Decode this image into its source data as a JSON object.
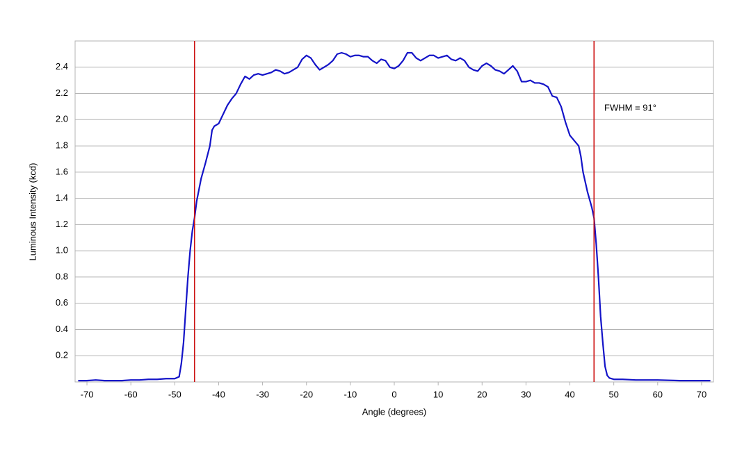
{
  "chart_data": {
    "type": "line",
    "x_label": "Angle (degrees)",
    "y_label": "Luminous Intensity (kcd)",
    "annotation": "FWHM = 91°",
    "color": "#1414c8",
    "x": [
      -72,
      -70,
      -68,
      -66,
      -64,
      -62,
      -60,
      -58,
      -56,
      -54,
      -52,
      -50,
      -49,
      -48.5,
      -48,
      -47.5,
      -47,
      -46.5,
      -46,
      -45.5,
      -45,
      -44,
      -43,
      -42,
      -41.5,
      -41,
      -40,
      -39,
      -38,
      -37,
      -36,
      -35,
      -34,
      -33,
      -32,
      -31,
      -30,
      -29,
      -28,
      -27,
      -26,
      -25,
      -24,
      -23,
      -22,
      -21,
      -20,
      -19,
      -18,
      -17,
      -16,
      -15,
      -14,
      -13,
      -12,
      -11,
      -10,
      -9,
      -8,
      -7,
      -6,
      -5,
      -4,
      -3,
      -2,
      -1,
      0,
      1,
      2,
      3,
      4,
      5,
      6,
      7,
      8,
      9,
      10,
      11,
      12,
      13,
      14,
      15,
      16,
      17,
      18,
      19,
      20,
      21,
      22,
      23,
      24,
      25,
      26,
      27,
      28,
      29,
      30,
      31,
      32,
      33,
      34,
      35,
      36,
      37,
      38,
      39,
      40,
      41,
      42,
      42.5,
      43,
      44,
      45,
      45.5,
      46,
      46.5,
      47,
      47.5,
      48,
      48.5,
      49,
      50,
      52,
      55,
      60,
      65,
      70,
      72
    ],
    "values": [
      0.01,
      0.01,
      0.015,
      0.01,
      0.01,
      0.01,
      0.015,
      0.015,
      0.02,
      0.02,
      0.025,
      0.025,
      0.04,
      0.14,
      0.3,
      0.55,
      0.8,
      1.0,
      1.15,
      1.25,
      1.38,
      1.55,
      1.67,
      1.8,
      1.92,
      1.95,
      1.97,
      2.04,
      2.11,
      2.16,
      2.2,
      2.27,
      2.33,
      2.31,
      2.34,
      2.35,
      2.34,
      2.35,
      2.36,
      2.38,
      2.37,
      2.35,
      2.36,
      2.38,
      2.4,
      2.46,
      2.49,
      2.47,
      2.42,
      2.38,
      2.4,
      2.42,
      2.45,
      2.5,
      2.51,
      2.5,
      2.48,
      2.49,
      2.49,
      2.48,
      2.48,
      2.45,
      2.43,
      2.46,
      2.45,
      2.4,
      2.39,
      2.41,
      2.45,
      2.51,
      2.51,
      2.47,
      2.45,
      2.47,
      2.49,
      2.49,
      2.47,
      2.48,
      2.49,
      2.46,
      2.45,
      2.47,
      2.45,
      2.4,
      2.38,
      2.37,
      2.41,
      2.43,
      2.41,
      2.38,
      2.37,
      2.35,
      2.38,
      2.41,
      2.37,
      2.29,
      2.29,
      2.3,
      2.28,
      2.28,
      2.27,
      2.25,
      2.18,
      2.17,
      2.1,
      1.98,
      1.88,
      1.84,
      1.8,
      1.72,
      1.6,
      1.45,
      1.33,
      1.25,
      1.05,
      0.8,
      0.5,
      0.3,
      0.12,
      0.05,
      0.03,
      0.02,
      0.02,
      0.015,
      0.015,
      0.01,
      0.01,
      0.01
    ],
    "markers": {
      "x": [
        -45.5,
        45.5
      ],
      "color": "#cc1111"
    },
    "xlim": [
      -72.7,
      72.7
    ],
    "ylim": [
      0,
      2.6
    ],
    "xticks": [
      -70,
      -60,
      -50,
      -40,
      -30,
      -20,
      -10,
      0,
      10,
      20,
      30,
      40,
      50,
      60,
      70
    ],
    "yticks": [
      0.2,
      0.4,
      0.6,
      0.8,
      {
        "value": 1,
        "label": "1.0"
      },
      1.2,
      1.4,
      1.6,
      1.8,
      {
        "value": 2,
        "label": "2.0"
      },
      2.2,
      2.4
    ],
    "grid": true
  }
}
